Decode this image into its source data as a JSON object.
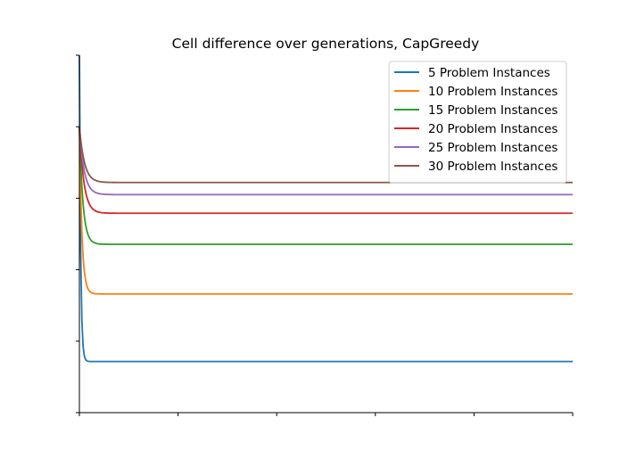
{
  "chart_data": {
    "type": "line",
    "title": "Cell difference over generations, CapGreedy",
    "xlabel": "",
    "ylabel": "",
    "xlim": [
      0,
      100
    ],
    "ylim": [
      0,
      100
    ],
    "x_ticks": [
      0,
      20,
      40,
      60,
      80,
      100
    ],
    "y_ticks": [
      0,
      20,
      40,
      60,
      80,
      100
    ],
    "tick_labels_shown": false,
    "grid": false,
    "legend_position": "top-right",
    "series": [
      {
        "name": "5 Problem Instances",
        "color": "#1f77b4",
        "start": 100,
        "plateau": 14.3,
        "decay": 0.25
      },
      {
        "name": "10 Problem Instances",
        "color": "#ff7f0e",
        "start": 80,
        "plateau": 33.2,
        "decay": 0.5
      },
      {
        "name": "15 Problem Instances",
        "color": "#2ca02c",
        "start": 80,
        "plateau": 47.1,
        "decay": 0.7
      },
      {
        "name": "20 Problem Instances",
        "color": "#d62728",
        "start": 80,
        "plateau": 55.8,
        "decay": 0.9
      },
      {
        "name": "25 Problem Instances",
        "color": "#9467bd",
        "start": 80,
        "plateau": 61.0,
        "decay": 0.95
      },
      {
        "name": "30 Problem Instances",
        "color": "#8c564b",
        "start": 80,
        "plateau": 64.4,
        "decay": 1.0
      }
    ]
  }
}
